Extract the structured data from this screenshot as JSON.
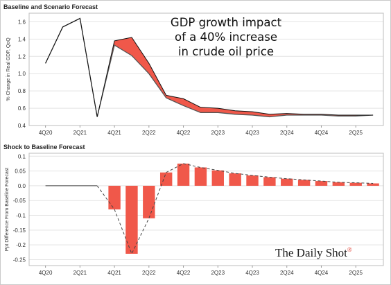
{
  "chart_data": [
    {
      "type": "line",
      "title": "Baseline and Scenario Forecast",
      "annotation": "GDP growth impact of a 40% increase in crude oil price",
      "ylabel": "% Change in Real GDP, QoQ",
      "xlabel": "",
      "ylim": [
        0.4,
        1.7
      ],
      "yticks": [
        "0.4",
        "0.6",
        "0.8",
        "1.0",
        "1.2",
        "1.4",
        "1.6"
      ],
      "xticks": [
        "4Q20",
        "2Q21",
        "4Q21",
        "2Q22",
        "4Q22",
        "2Q23",
        "4Q23",
        "2Q24",
        "4Q24",
        "2Q25"
      ],
      "x": [
        "4Q20",
        "1Q21",
        "2Q21",
        "3Q21",
        "4Q21",
        "1Q22",
        "2Q22",
        "3Q22",
        "4Q22",
        "1Q23",
        "2Q23",
        "3Q23",
        "4Q23",
        "1Q24",
        "2Q24",
        "3Q24",
        "4Q24",
        "1Q25",
        "2Q25",
        "3Q25"
      ],
      "grid": true,
      "legend": "none",
      "series": [
        {
          "role": "baseline",
          "values": [
            1.12,
            1.54,
            1.64,
            0.5,
            1.38,
            1.42,
            1.12,
            0.75,
            0.71,
            0.61,
            0.6,
            0.57,
            0.56,
            0.53,
            0.54,
            0.53,
            0.53,
            0.52,
            0.52,
            0.52
          ]
        },
        {
          "role": "scenario",
          "values": [
            1.12,
            1.54,
            1.64,
            0.5,
            1.33,
            1.21,
            1.0,
            0.72,
            0.63,
            0.55,
            0.55,
            0.53,
            0.52,
            0.5,
            0.52,
            0.52,
            0.52,
            0.51,
            0.51,
            0.52
          ]
        }
      ],
      "colors": {
        "baseline": "#111111",
        "scenario": "#555555",
        "fill": "#f0584a"
      }
    },
    {
      "type": "bar",
      "title": "Shock to Baseline Forecast",
      "ylabel": "Ppt Difference From Baseline Forecast",
      "xlabel": "",
      "ylim": [
        -0.27,
        0.11
      ],
      "yticks": [
        "0.1",
        "0.05",
        "0.0",
        "-0.05",
        "-0.1",
        "-0.15",
        "-0.2",
        "-0.25"
      ],
      "xticks": [
        "4Q20",
        "2Q21",
        "4Q21",
        "2Q22",
        "4Q22",
        "2Q23",
        "4Q23",
        "2Q24",
        "4Q24",
        "2Q25"
      ],
      "categories": [
        "4Q20",
        "1Q21",
        "2Q21",
        "3Q21",
        "4Q21",
        "1Q22",
        "2Q22",
        "3Q22",
        "4Q22",
        "1Q23",
        "2Q23",
        "3Q23",
        "4Q23",
        "1Q24",
        "2Q24",
        "3Q24",
        "4Q24",
        "1Q25",
        "2Q25",
        "3Q25"
      ],
      "values": [
        0,
        0,
        0,
        0,
        -0.08,
        -0.23,
        -0.11,
        0.045,
        0.075,
        0.062,
        0.052,
        0.042,
        0.035,
        0.029,
        0.024,
        0.02,
        0.016,
        0.012,
        0.01,
        0.008
      ],
      "grid": true,
      "legend": "none",
      "colors": {
        "bar": "#f0584a",
        "line": "#444444"
      }
    }
  ],
  "brand": {
    "name": "The Daily Shot",
    "mark": "®"
  }
}
